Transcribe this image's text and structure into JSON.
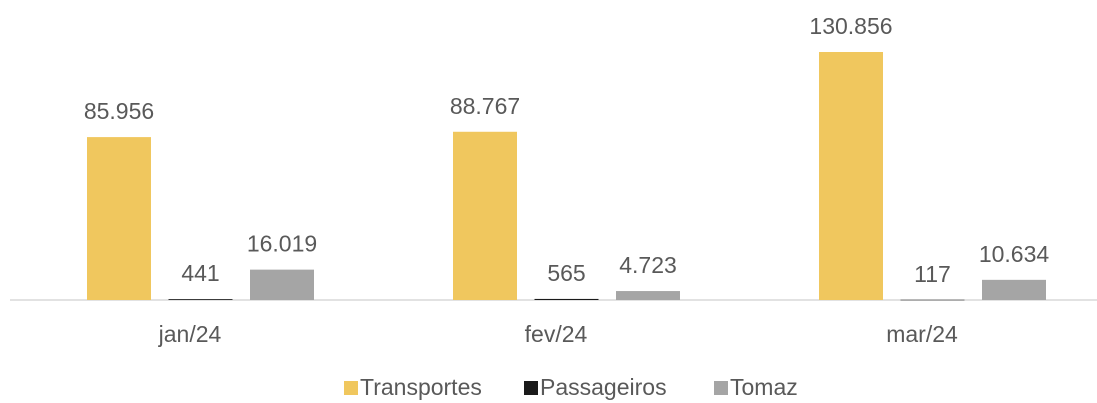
{
  "chart_data": {
    "type": "bar",
    "categories": [
      "jan/24",
      "fev/24",
      "mar/24"
    ],
    "series": [
      {
        "name": "Transportes",
        "color": "#f0c75e",
        "values": [
          85956,
          88767,
          130856
        ],
        "value_labels": [
          "85.956",
          "88.767",
          "130.856"
        ]
      },
      {
        "name": "Passageiros",
        "color": "#1a1a1a",
        "values": [
          441,
          565,
          117
        ],
        "value_labels": [
          "441",
          "565",
          "117"
        ]
      },
      {
        "name": "Tomaz",
        "color": "#a5a5a5",
        "values": [
          16019,
          4723,
          10634
        ],
        "value_labels": [
          "16.019",
          "4.723",
          "10.634"
        ]
      }
    ]
  }
}
